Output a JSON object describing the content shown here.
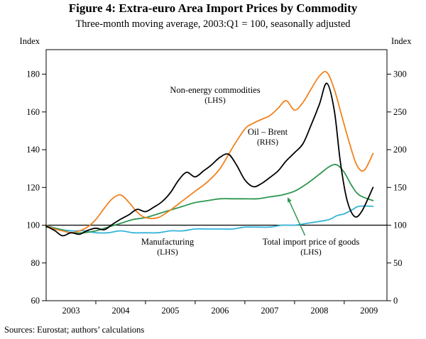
{
  "figure": {
    "title": "Figure 4: Extra-euro Area Import Prices by Commodity",
    "subtitle": "Three-month moving average, 2003:Q1 = 100, seasonally adjusted",
    "source_note": "Sources:  Eurostat; authors’ calculations"
  },
  "chart_data": {
    "type": "line",
    "title": "Figure 4: Extra-euro Area Import Prices by Commodity",
    "subtitle": "Three-month moving average, 2003:Q1 = 100, seasonally adjusted",
    "grid": false,
    "legend": "inline-annotations",
    "x_axis": {
      "range": [
        2003.0,
        2009.86
      ],
      "tick_years": [
        2003,
        2004,
        2005,
        2006,
        2007,
        2008,
        2009
      ],
      "year_tick_labels": [
        "2003",
        "2004",
        "2005",
        "2006",
        "2007",
        "2008",
        "2009"
      ]
    },
    "left_axis": {
      "title": "Index",
      "ticks": [
        180,
        160,
        140,
        120,
        100,
        80,
        60
      ],
      "range": [
        60,
        193
      ]
    },
    "right_axis": {
      "title": "Index",
      "ticks": [
        300,
        250,
        200,
        150,
        100,
        50,
        0
      ],
      "range": [
        0,
        332.5
      ]
    },
    "baseline_value": 100,
    "series": [
      {
        "name": "Manufacturing",
        "axis": "left",
        "color": "#35b4d9",
        "x": [
          2003.0,
          2003.25,
          2003.5,
          2003.75,
          2004.0,
          2004.25,
          2004.5,
          2004.75,
          2005.0,
          2005.25,
          2005.5,
          2005.75,
          2006.0,
          2006.25,
          2006.5,
          2006.75,
          2007.0,
          2007.25,
          2007.5,
          2007.75,
          2008.0,
          2008.25,
          2008.5,
          2008.7,
          2008.85,
          2009.0,
          2009.15,
          2009.3,
          2009.58
        ],
        "y": [
          100,
          98,
          97,
          97,
          96,
          96,
          97,
          96,
          96,
          96,
          97,
          97,
          98,
          98,
          98,
          98,
          99,
          99,
          99,
          100,
          100,
          101,
          102,
          103,
          105,
          106,
          108,
          110,
          110
        ]
      },
      {
        "name": "Total import price of goods",
        "axis": "left",
        "color": "#2d9650",
        "x": [
          2003.0,
          2003.25,
          2003.5,
          2003.75,
          2004.0,
          2004.25,
          2004.5,
          2004.75,
          2005.0,
          2005.25,
          2005.5,
          2005.75,
          2006.0,
          2006.25,
          2006.5,
          2006.75,
          2007.0,
          2007.25,
          2007.5,
          2007.75,
          2008.0,
          2008.25,
          2008.5,
          2008.7,
          2008.85,
          2009.0,
          2009.15,
          2009.3,
          2009.58
        ],
        "y": [
          99,
          98,
          96,
          96,
          97,
          99,
          101,
          103,
          104,
          106,
          108,
          110,
          112,
          113,
          114,
          114,
          114,
          114,
          115,
          116,
          118,
          122,
          127,
          131,
          132,
          128,
          121,
          116,
          113
        ]
      },
      {
        "name": "Non-energy commodities",
        "axis": "left",
        "color": "#f0821e",
        "x": [
          2003.0,
          2003.17,
          2003.33,
          2003.5,
          2003.67,
          2003.83,
          2004.0,
          2004.17,
          2004.33,
          2004.5,
          2004.67,
          2004.83,
          2005.0,
          2005.25,
          2005.5,
          2005.75,
          2006.0,
          2006.25,
          2006.5,
          2006.75,
          2007.0,
          2007.17,
          2007.33,
          2007.5,
          2007.67,
          2007.83,
          2008.0,
          2008.17,
          2008.33,
          2008.5,
          2008.65,
          2008.8,
          2008.95,
          2009.1,
          2009.25,
          2009.4,
          2009.58
        ],
        "y": [
          100,
          98,
          97,
          96,
          97,
          99,
          103,
          109,
          114,
          116,
          112,
          107,
          104,
          104,
          108,
          113,
          118,
          123,
          130,
          141,
          151,
          154,
          156,
          158,
          162,
          166,
          161,
          165,
          172,
          179,
          181,
          172,
          158,
          144,
          132,
          129,
          138
        ]
      },
      {
        "name": "Oil – Brent",
        "axis": "right",
        "color": "#000000",
        "x": [
          2003.0,
          2003.17,
          2003.33,
          2003.5,
          2003.67,
          2003.83,
          2004.0,
          2004.17,
          2004.33,
          2004.5,
          2004.67,
          2004.83,
          2005.0,
          2005.17,
          2005.33,
          2005.5,
          2005.67,
          2005.83,
          2006.0,
          2006.17,
          2006.33,
          2006.5,
          2006.67,
          2006.83,
          2007.0,
          2007.17,
          2007.33,
          2007.5,
          2007.67,
          2007.83,
          2008.0,
          2008.17,
          2008.33,
          2008.5,
          2008.65,
          2008.8,
          2008.92,
          2009.05,
          2009.2,
          2009.35,
          2009.58
        ],
        "y": [
          99,
          93,
          86,
          90,
          88,
          93,
          96,
          94,
          101,
          108,
          114,
          121,
          118,
          124,
          131,
          143,
          160,
          170,
          164,
          172,
          180,
          190,
          194,
          180,
          160,
          151,
          155,
          163,
          172,
          185,
          196,
          208,
          232,
          260,
          288,
          252,
          185,
          135,
          112,
          118,
          150
        ]
      }
    ],
    "annotations": {
      "non_energy": {
        "line1": "Non-energy commodities",
        "line2": "(LHS)",
        "color": "#f0821e"
      },
      "oil": {
        "line1": "Oil – Brent",
        "line2": "(RHS)",
        "color": "#000000"
      },
      "manufacturing": {
        "line1": "Manufacturing",
        "line2": "(LHS)",
        "color": "#35b4d9"
      },
      "total": {
        "line1": "Total import price of goods",
        "line2": "(LHS)",
        "color": "#2d9650"
      }
    }
  }
}
